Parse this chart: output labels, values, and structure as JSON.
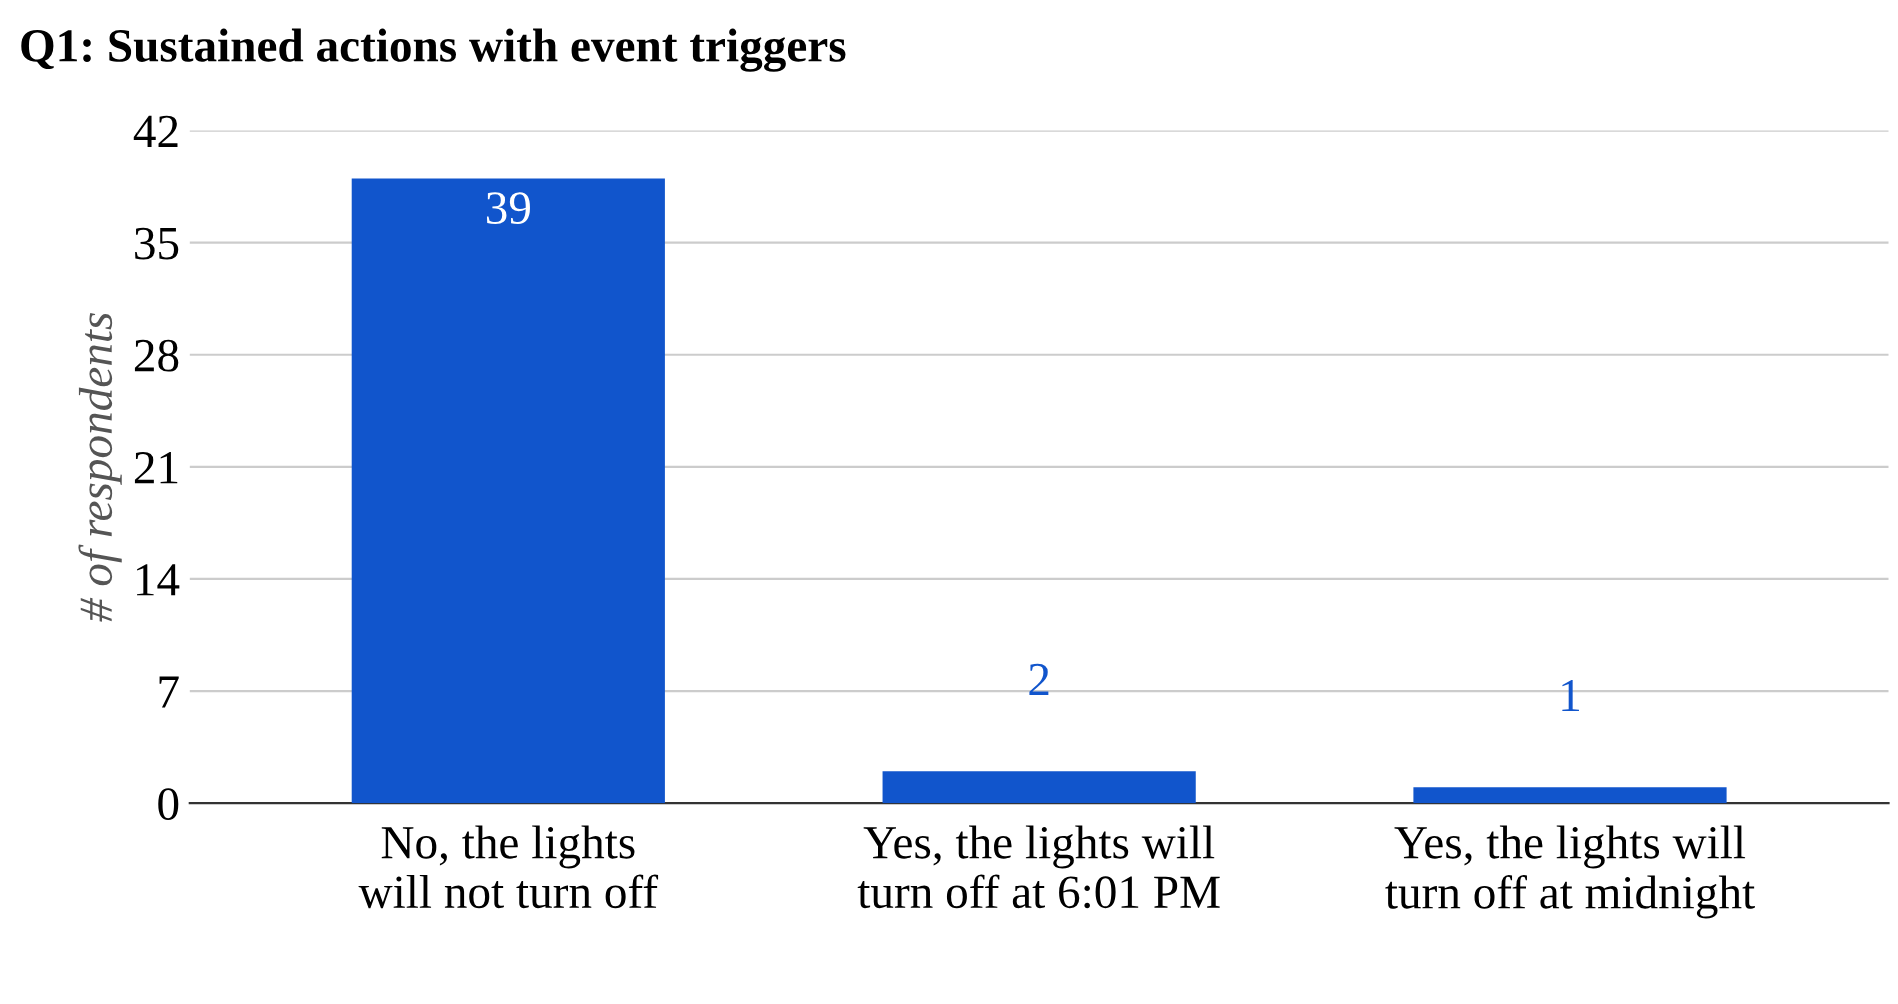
{
  "chart_data": {
    "type": "bar",
    "title": "Q1: Sustained actions with event triggers",
    "ylabel": "# of respondents",
    "categories": [
      "No, the lights will not turn off",
      "Yes, the lights will turn off at 6:01 PM",
      "Yes, the lights will turn off at midnight"
    ],
    "values": [
      39,
      2,
      1
    ],
    "color": "#1155cc",
    "ylim": [
      0,
      42
    ],
    "yticks": [
      0,
      7,
      14,
      21,
      28,
      35,
      42
    ],
    "grid": "y",
    "data_labels": true
  }
}
